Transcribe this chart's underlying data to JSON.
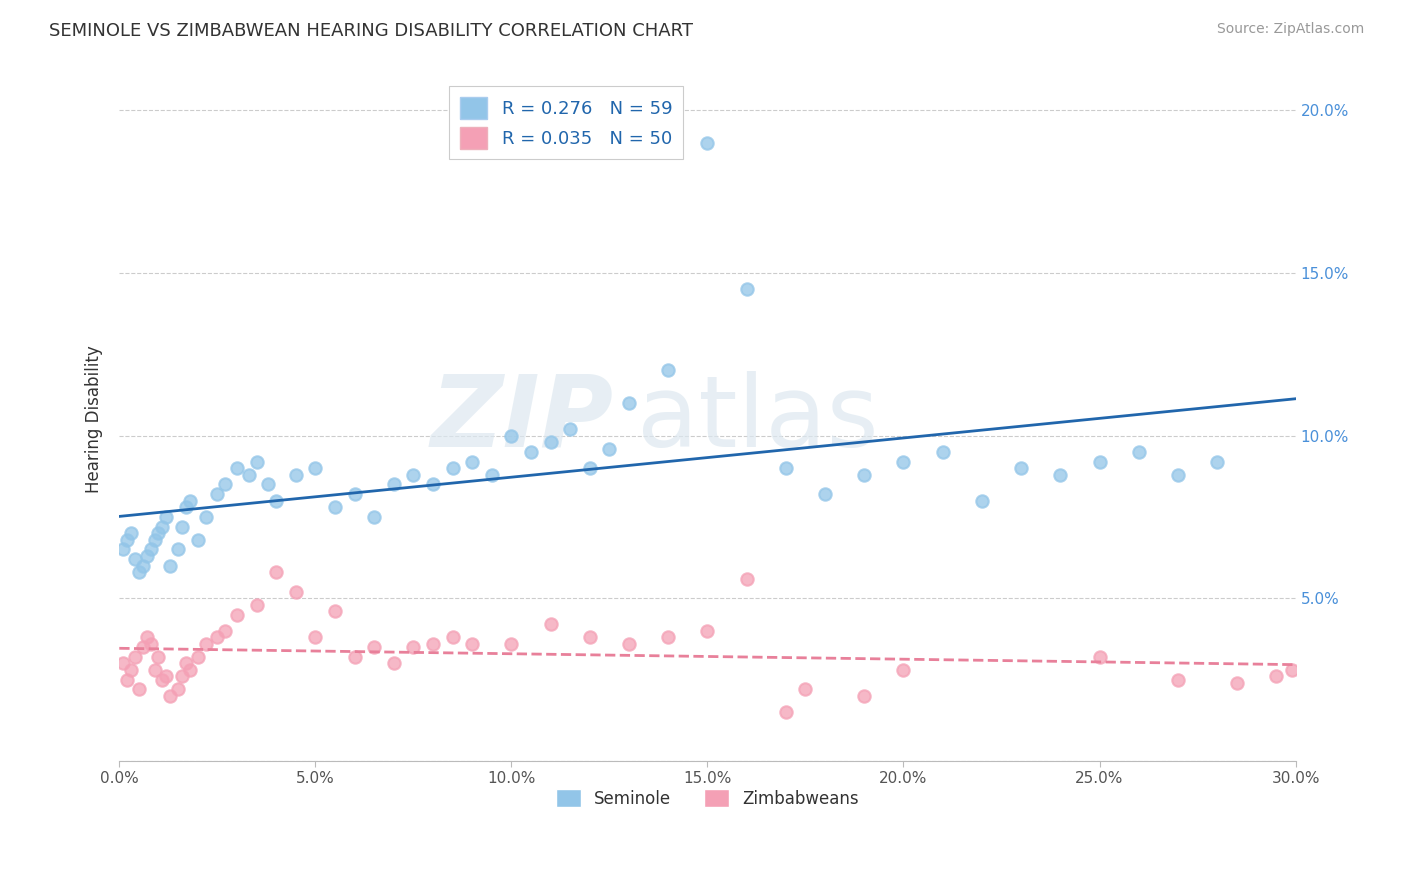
{
  "title": "SEMINOLE VS ZIMBABWEAN HEARING DISABILITY CORRELATION CHART",
  "source": "Source: ZipAtlas.com",
  "ylabel": "Hearing Disability",
  "xlim": [
    0.0,
    0.3
  ],
  "ylim": [
    0.0,
    0.21
  ],
  "xticks": [
    0.0,
    0.05,
    0.1,
    0.15,
    0.2,
    0.25,
    0.3
  ],
  "yticks": [
    0.0,
    0.05,
    0.1,
    0.15,
    0.2
  ],
  "xticklabels": [
    "0.0%",
    "5.0%",
    "10.0%",
    "15.0%",
    "20.0%",
    "25.0%",
    "30.0%"
  ],
  "yticklabels_right": [
    "",
    "5.0%",
    "10.0%",
    "15.0%",
    "20.0%"
  ],
  "legend_labels": [
    "Seminole",
    "Zimbabweans"
  ],
  "legend_R": [
    "R = 0.276",
    "R = 0.035"
  ],
  "legend_N": [
    "N = 59",
    "N = 50"
  ],
  "seminole_color": "#92c5e8",
  "zimbabwean_color": "#f4a0b5",
  "seminole_line_color": "#2166ac",
  "zimbabwean_line_color": "#e8809a",
  "watermark_zip": "ZIP",
  "watermark_atlas": "atlas",
  "seminole_x": [
    0.001,
    0.002,
    0.003,
    0.004,
    0.005,
    0.006,
    0.007,
    0.008,
    0.009,
    0.01,
    0.011,
    0.012,
    0.013,
    0.015,
    0.016,
    0.017,
    0.018,
    0.02,
    0.022,
    0.025,
    0.027,
    0.03,
    0.033,
    0.035,
    0.038,
    0.04,
    0.045,
    0.05,
    0.055,
    0.06,
    0.065,
    0.07,
    0.075,
    0.08,
    0.085,
    0.09,
    0.095,
    0.1,
    0.105,
    0.11,
    0.115,
    0.12,
    0.125,
    0.13,
    0.14,
    0.15,
    0.16,
    0.17,
    0.18,
    0.19,
    0.2,
    0.21,
    0.22,
    0.23,
    0.24,
    0.25,
    0.26,
    0.27,
    0.28
  ],
  "seminole_y": [
    0.065,
    0.068,
    0.07,
    0.062,
    0.058,
    0.06,
    0.063,
    0.065,
    0.068,
    0.07,
    0.072,
    0.075,
    0.06,
    0.065,
    0.072,
    0.078,
    0.08,
    0.068,
    0.075,
    0.082,
    0.085,
    0.09,
    0.088,
    0.092,
    0.085,
    0.08,
    0.088,
    0.09,
    0.078,
    0.082,
    0.075,
    0.085,
    0.088,
    0.085,
    0.09,
    0.092,
    0.088,
    0.1,
    0.095,
    0.098,
    0.102,
    0.09,
    0.096,
    0.11,
    0.12,
    0.19,
    0.145,
    0.09,
    0.082,
    0.088,
    0.092,
    0.095,
    0.08,
    0.09,
    0.088,
    0.092,
    0.095,
    0.088,
    0.092
  ],
  "zimbabwean_x": [
    0.001,
    0.002,
    0.003,
    0.004,
    0.005,
    0.006,
    0.007,
    0.008,
    0.009,
    0.01,
    0.011,
    0.012,
    0.013,
    0.015,
    0.016,
    0.017,
    0.018,
    0.02,
    0.022,
    0.025,
    0.027,
    0.03,
    0.035,
    0.04,
    0.045,
    0.05,
    0.055,
    0.06,
    0.065,
    0.07,
    0.075,
    0.08,
    0.085,
    0.09,
    0.1,
    0.11,
    0.12,
    0.13,
    0.14,
    0.15,
    0.16,
    0.17,
    0.175,
    0.19,
    0.2,
    0.25,
    0.27,
    0.285,
    0.295,
    0.299
  ],
  "zimbabwean_y": [
    0.03,
    0.025,
    0.028,
    0.032,
    0.022,
    0.035,
    0.038,
    0.036,
    0.028,
    0.032,
    0.025,
    0.026,
    0.02,
    0.022,
    0.026,
    0.03,
    0.028,
    0.032,
    0.036,
    0.038,
    0.04,
    0.045,
    0.048,
    0.058,
    0.052,
    0.038,
    0.046,
    0.032,
    0.035,
    0.03,
    0.035,
    0.036,
    0.038,
    0.036,
    0.036,
    0.042,
    0.038,
    0.036,
    0.038,
    0.04,
    0.056,
    0.015,
    0.022,
    0.02,
    0.028,
    0.032,
    0.025,
    0.024,
    0.026,
    0.028
  ]
}
